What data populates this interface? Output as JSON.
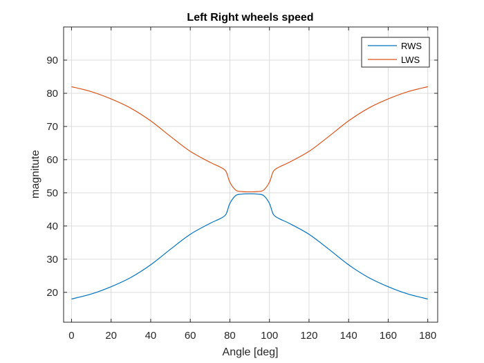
{
  "chart_data": {
    "type": "line",
    "title": "Left Right wheels speed",
    "xlabel": "Angle [deg]",
    "ylabel": "magnitute",
    "xlim": [
      -4,
      185
    ],
    "ylim": [
      11,
      100
    ],
    "xticks": [
      0,
      20,
      40,
      60,
      80,
      100,
      120,
      140,
      160,
      180
    ],
    "yticks": [
      20,
      30,
      40,
      50,
      60,
      70,
      80,
      90
    ],
    "grid": true,
    "legend_position": "top-right",
    "series": [
      {
        "name": "RWS",
        "color": "#0072BD",
        "x": [
          0,
          10,
          20,
          30,
          40,
          50,
          60,
          70,
          75,
          78,
          80,
          83,
          86,
          90,
          94,
          97,
          100,
          102,
          105,
          110,
          120,
          130,
          140,
          150,
          160,
          170,
          180
        ],
        "y": [
          18.0,
          19.5,
          21.7,
          24.5,
          28.3,
          33.0,
          37.5,
          40.8,
          42.2,
          43.5,
          46.8,
          49.2,
          49.6,
          49.7,
          49.6,
          49.2,
          46.8,
          43.5,
          42.2,
          40.8,
          37.5,
          33.0,
          28.3,
          24.5,
          21.7,
          19.5,
          18.0
        ]
      },
      {
        "name": "LWS",
        "color": "#D95319",
        "x": [
          0,
          10,
          20,
          30,
          40,
          50,
          60,
          70,
          75,
          78,
          80,
          83,
          86,
          90,
          94,
          97,
          100,
          102,
          105,
          110,
          120,
          130,
          140,
          150,
          160,
          170,
          180
        ],
        "y": [
          82.0,
          80.5,
          78.3,
          75.5,
          71.7,
          67.0,
          62.5,
          59.2,
          57.8,
          56.5,
          53.2,
          50.8,
          50.4,
          50.3,
          50.4,
          50.8,
          53.2,
          56.5,
          57.8,
          59.2,
          62.5,
          67.0,
          71.7,
          75.5,
          78.3,
          80.5,
          82.0
        ]
      }
    ]
  }
}
